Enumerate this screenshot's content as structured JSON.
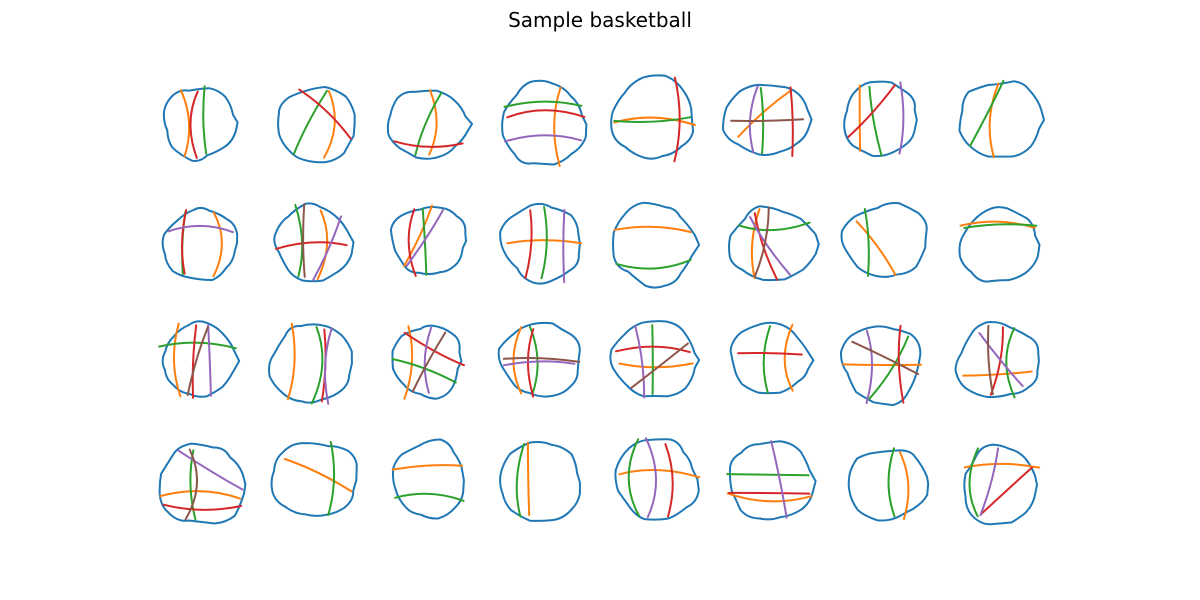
{
  "title": "Sample basketball",
  "grid": {
    "rows": 4,
    "cols": 8
  },
  "stroke_palette": [
    "#1f77b4",
    "#ff7f0e",
    "#2ca02c",
    "#d62728",
    "#9467bd",
    "#8c564b",
    "#e377c2",
    "#bcbd22",
    "#17becf"
  ]
}
